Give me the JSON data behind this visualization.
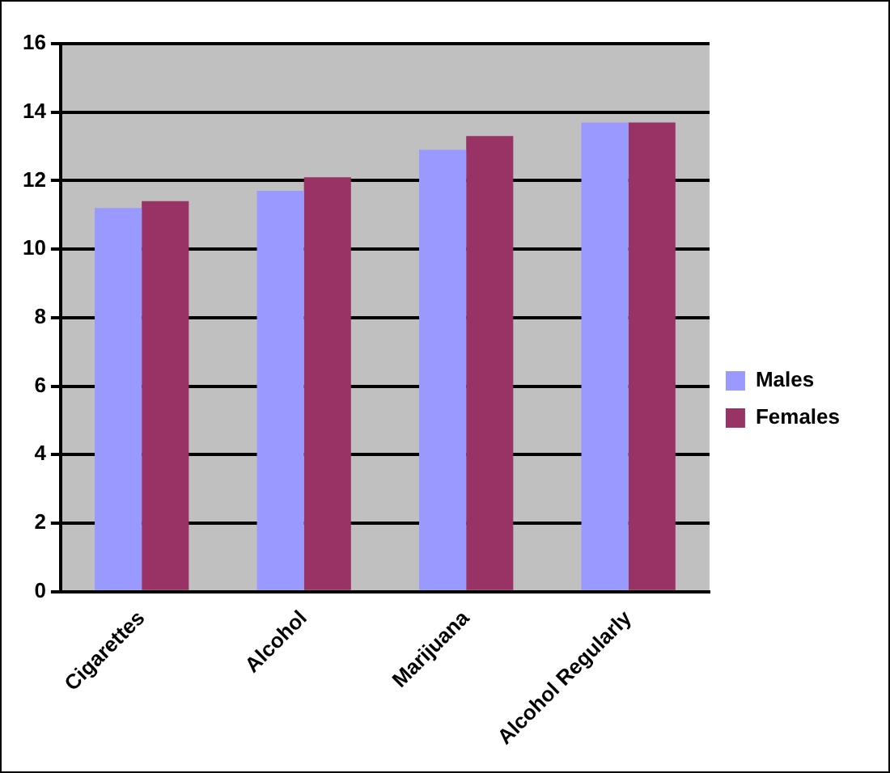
{
  "chart_data": {
    "type": "bar",
    "categories": [
      "Cigarettes",
      "Alcohol",
      "Marijuana",
      "Alcohol Regularly"
    ],
    "series": [
      {
        "name": "Males",
        "color": "#9999ff",
        "values": [
          11.2,
          11.7,
          12.9,
          13.7
        ]
      },
      {
        "name": "Females",
        "color": "#993366",
        "values": [
          11.4,
          12.1,
          13.3,
          13.7
        ]
      }
    ],
    "ylim": [
      0,
      16
    ],
    "yticks": [
      0,
      2,
      4,
      6,
      8,
      10,
      12,
      14,
      16
    ],
    "grid": "y",
    "legend": "right"
  }
}
